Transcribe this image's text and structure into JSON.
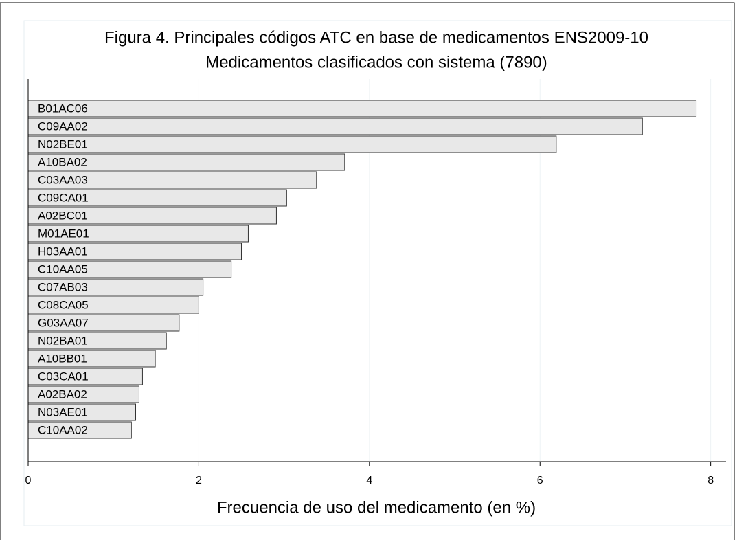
{
  "chart_data": {
    "type": "barh",
    "title": "Figura 4. Principales códigos ATC en base de medicamentos ENS2009-10",
    "subtitle": "Medicamentos clasificados con sistema (7890)",
    "x_label": "Frecuencia de uso del medicamento (en %)",
    "categories": [
      "B01AC06",
      "C09AA02",
      "N02BE01",
      "A10BA02",
      "C03AA03",
      "C09CA01",
      "A02BC01",
      "M01AE01",
      "H03AA01",
      "C10AA05",
      "C07AB03",
      "C08CA05",
      "G03AA07",
      "N02BA01",
      "A10BB01",
      "C03CA01",
      "A02BA02",
      "N03AE01",
      "C10AA02"
    ],
    "values": [
      7.83,
      7.2,
      6.19,
      3.71,
      3.38,
      3.03,
      2.91,
      2.58,
      2.5,
      2.38,
      2.05,
      2.0,
      1.77,
      1.62,
      1.49,
      1.34,
      1.3,
      1.26,
      1.21
    ],
    "color": "#e8e8e8",
    "xlim": [
      0,
      8.18
    ],
    "xticks": [
      0,
      2,
      4,
      6,
      8
    ],
    "grid": true
  }
}
